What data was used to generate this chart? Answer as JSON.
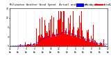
{
  "title_line1": "Milwaukee Weather Wind Speed",
  "title_line2": "Actual and Median",
  "title_line3": "by Minute",
  "title_line4": "(24 Hours) (Old)",
  "legend_actual": "Actual",
  "legend_median": "Median",
  "actual_color": "#FF0000",
  "median_color": "#0000FF",
  "background_color": "#FFFFFF",
  "n_points": 1440,
  "seed": 42,
  "ylim": [
    0,
    16
  ],
  "xlim": [
    0,
    1440
  ],
  "title_fontsize": 2.8,
  "tick_fontsize": 2.2,
  "legend_fontsize": 2.2
}
